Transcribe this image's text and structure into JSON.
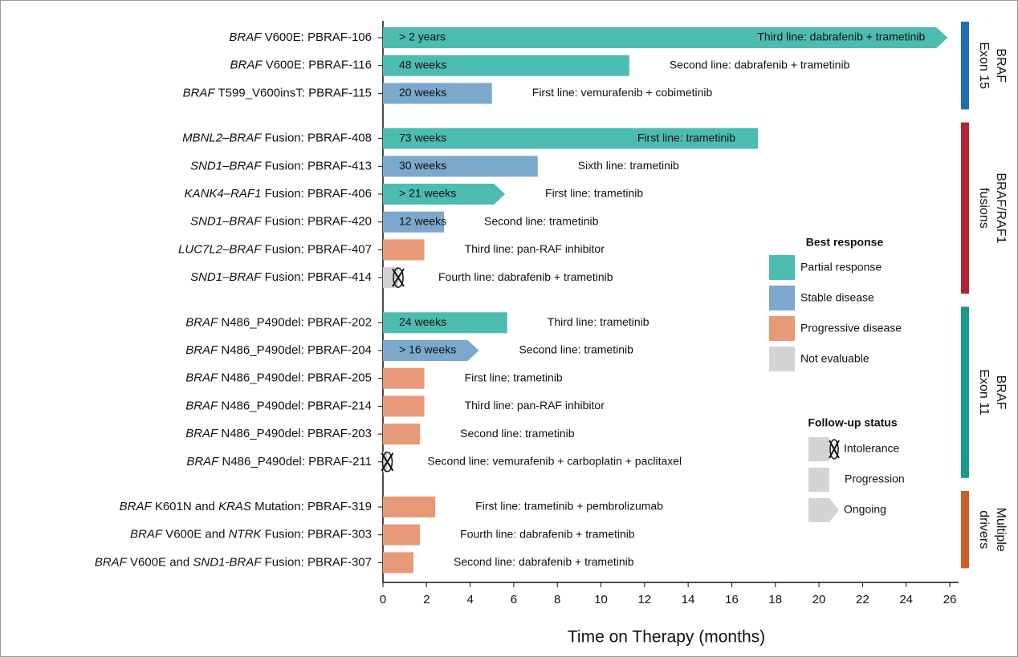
{
  "chart_data": {
    "type": "bar",
    "orientation": "horizontal",
    "xlabel": "Time on Therapy (months)",
    "xlim": [
      0,
      26.4
    ],
    "xticks": [
      0,
      2,
      4,
      6,
      8,
      10,
      12,
      14,
      16,
      18,
      20,
      22,
      24,
      26
    ],
    "categories": [
      [
        {
          "text": "BRAF",
          "italic": true
        },
        {
          "text": " V600E: PBRAF-106"
        }
      ],
      [
        {
          "text": "BRAF",
          "italic": true
        },
        {
          "text": " V600E: PBRAF-116"
        }
      ],
      [
        {
          "text": "BRAF",
          "italic": true
        },
        {
          "text": " T599_V600insT: PBRAF-115"
        }
      ],
      [
        {
          "text": "MBNL2–BRAF",
          "italic": true
        },
        {
          "text": " Fusion: PBRAF-408"
        }
      ],
      [
        {
          "text": "SND1–BRAF",
          "italic": true
        },
        {
          "text": " Fusion: PBRAF-413"
        }
      ],
      [
        {
          "text": "KANK4–RAF1",
          "italic": true
        },
        {
          "text": " Fusion: PBRAF-406"
        }
      ],
      [
        {
          "text": "SND1–BRAF",
          "italic": true
        },
        {
          "text": " Fusion: PBRAF-420"
        }
      ],
      [
        {
          "text": "LUC7L2–BRAF",
          "italic": true
        },
        {
          "text": " Fusion: PBRAF-407"
        }
      ],
      [
        {
          "text": "SND1–BRAF",
          "italic": true
        },
        {
          "text": " Fusion: PBRAF-414"
        }
      ],
      [
        {
          "text": "BRAF",
          "italic": true
        },
        {
          "text": " N486_P490del: PBRAF-202"
        }
      ],
      [
        {
          "text": "BRAF",
          "italic": true
        },
        {
          "text": " N486_P490del: PBRAF-204"
        }
      ],
      [
        {
          "text": "BRAF",
          "italic": true
        },
        {
          "text": " N486_P490del: PBRAF-205"
        }
      ],
      [
        {
          "text": "BRAF",
          "italic": true
        },
        {
          "text": " N486_P490del: PBRAF-214"
        }
      ],
      [
        {
          "text": "BRAF",
          "italic": true
        },
        {
          "text": " N486_P490del: PBRAF-203"
        }
      ],
      [
        {
          "text": "BRAF",
          "italic": true
        },
        {
          "text": " N486_P490del: PBRAF-211"
        }
      ],
      [
        {
          "text": "BRAF",
          "italic": true
        },
        {
          "text": " K601N and "
        },
        {
          "text": "KRAS",
          "italic": true
        },
        {
          "text": " Mutation: PBRAF-319"
        }
      ],
      [
        {
          "text": "BRAF",
          "italic": true
        },
        {
          "text": " V600E and "
        },
        {
          "text": "NTRK",
          "italic": true
        },
        {
          "text": " Fusion: PBRAF-303"
        }
      ],
      [
        {
          "text": "BRAF",
          "italic": true
        },
        {
          "text": " V600E and "
        },
        {
          "text": "SND1-BRAF",
          "italic": true
        },
        {
          "text": " Fusion: PBRAF-307"
        }
      ]
    ],
    "values": [
      25.9,
      11.3,
      5.0,
      17.2,
      7.1,
      5.6,
      2.8,
      1.9,
      0.7,
      5.7,
      4.4,
      1.9,
      1.9,
      1.7,
      0.2,
      2.4,
      1.7,
      1.4
    ],
    "duration_labels": [
      "> 2 years",
      "48 weeks",
      "20 weeks",
      "73 weeks",
      "30 weeks",
      "> 21 weeks",
      "12 weeks",
      null,
      null,
      "24 weeks",
      "> 16 weeks",
      null,
      null,
      null,
      null,
      null,
      null,
      null
    ],
    "therapies": [
      "Third line: dabrafenib + trametinib",
      "Second line: dabrafenib + trametinib",
      "First line: vemurafenib + cobimetinib",
      "First line: trametinib",
      "Sixth line: trametinib",
      "First line: trametinib",
      "Second line: trametinib",
      "Third line: pan-RAF inhibitor",
      "Fourth line: dabrafenib + trametinib",
      "Third line: trametinib",
      "Second line: trametinib",
      "First line: trametinib",
      "Third line: pan-RAF inhibitor",
      "Second line: trametinib",
      "Second line: vemurafenib + carboplatin + paclitaxel",
      "First line: trametinib + pembrolizumab",
      "Fourth line: dabrafenib + trametinib",
      "Second line: dabrafenib + trametinib"
    ],
    "responses": [
      "Partial response",
      "Partial response",
      "Stable disease",
      "Partial response",
      "Stable disease",
      "Partial response",
      "Stable disease",
      "Progressive disease",
      "Not evaluable",
      "Partial response",
      "Stable disease",
      "Progressive disease",
      "Progressive disease",
      "Progressive disease",
      "Not evaluable",
      "Progressive disease",
      "Progressive disease",
      "Progressive disease"
    ],
    "status": [
      "Ongoing",
      "Progression",
      "Progression",
      "Progression",
      "Progression",
      "Ongoing",
      "Progression",
      "Progression",
      "Intolerance",
      "Progression",
      "Ongoing",
      "Progression",
      "Progression",
      "Progression",
      "Intolerance",
      "Progression",
      "Progression",
      "Progression"
    ],
    "response_legend": {
      "title": "Best response",
      "items": [
        {
          "name": "Partial response",
          "color": "#4dbcb0"
        },
        {
          "name": "Stable disease",
          "color": "#7ba8cc"
        },
        {
          "name": "Progressive disease",
          "color": "#e69a78"
        },
        {
          "name": "Not evaluable",
          "color": "#d4d4d4"
        }
      ]
    },
    "status_legend": {
      "title": "Follow-up status",
      "items": [
        "Intolerance",
        "Progression",
        "Ongoing"
      ]
    },
    "groups": [
      {
        "label": [
          "BRAF",
          "Exon 15"
        ],
        "color": "#1f6fae",
        "rows": 3
      },
      {
        "label": [
          "BRAF/RAF1",
          "fusions"
        ],
        "color": "#b0243a",
        "rows": 6
      },
      {
        "label": [
          "BRAF",
          "Exon 11"
        ],
        "color": "#1a9a8a",
        "rows": 6
      },
      {
        "label": [
          "Multiple",
          "drivers"
        ],
        "color": "#c8602a",
        "rows": 3
      }
    ]
  }
}
